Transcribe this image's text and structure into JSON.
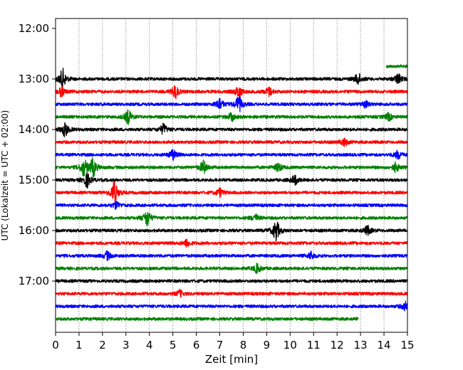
{
  "chart_data": {
    "type": "line",
    "title": "",
    "xlabel": "Zeit  [min]",
    "ylabel": "UTC (Lokalzeit = UTC + 02:00)",
    "xlim": [
      0,
      15
    ],
    "x_ticks": [
      0,
      1,
      2,
      3,
      4,
      5,
      6,
      7,
      8,
      9,
      10,
      11,
      12,
      13,
      14,
      15
    ],
    "y_tick_labels": [
      "12:00",
      "13:00",
      "14:00",
      "15:00",
      "16:00",
      "17:00"
    ],
    "grid": "vertical dotted",
    "colors": [
      "#000000",
      "#ff0000",
      "#0000ff",
      "#008000"
    ],
    "traces": [
      {
        "start": "12:45",
        "color": "#008000",
        "t_start": 14.1,
        "t_end": 15,
        "events": []
      },
      {
        "start": "13:00",
        "color": "#000000",
        "t_start": 0,
        "t_end": 15,
        "events": [
          [
            0.3,
            3.4
          ],
          [
            12.9,
            1.9
          ],
          [
            14.6,
            1.7
          ]
        ]
      },
      {
        "start": "13:15",
        "color": "#ff0000",
        "t_start": 0,
        "t_end": 15,
        "events": [
          [
            0.25,
            1.6
          ],
          [
            5.1,
            2.2
          ],
          [
            7.8,
            2.0
          ],
          [
            9.1,
            1.5
          ]
        ]
      },
      {
        "start": "13:30",
        "color": "#0000ff",
        "t_start": 0,
        "t_end": 15,
        "events": [
          [
            7.0,
            2.0
          ],
          [
            7.8,
            2.8
          ],
          [
            13.2,
            1.2
          ]
        ]
      },
      {
        "start": "13:45",
        "color": "#008000",
        "t_start": 0,
        "t_end": 15,
        "events": [
          [
            3.1,
            2.4
          ],
          [
            7.5,
            1.3
          ],
          [
            14.2,
            1.2
          ]
        ]
      },
      {
        "start": "14:00",
        "color": "#000000",
        "t_start": 0,
        "t_end": 15,
        "events": [
          [
            0.4,
            2.3
          ],
          [
            4.6,
            1.8
          ]
        ]
      },
      {
        "start": "14:15",
        "color": "#ff0000",
        "t_start": 0,
        "t_end": 15,
        "events": [
          [
            12.3,
            1.3
          ]
        ]
      },
      {
        "start": "14:30",
        "color": "#0000ff",
        "t_start": 0,
        "t_end": 15,
        "events": [
          [
            5.0,
            1.7
          ],
          [
            14.6,
            1.4
          ]
        ]
      },
      {
        "start": "14:45",
        "color": "#008000",
        "t_start": 0,
        "t_end": 15,
        "events": [
          [
            1.2,
            2.9
          ],
          [
            1.6,
            3.0
          ],
          [
            6.3,
            2.2
          ],
          [
            9.5,
            1.5
          ],
          [
            14.5,
            1.5
          ]
        ]
      },
      {
        "start": "15:00",
        "color": "#000000",
        "t_start": 0,
        "t_end": 15,
        "events": [
          [
            1.35,
            2.4
          ],
          [
            10.2,
            1.6
          ]
        ]
      },
      {
        "start": "15:15",
        "color": "#ff0000",
        "t_start": 0,
        "t_end": 15,
        "events": [
          [
            2.5,
            4.2
          ],
          [
            7.0,
            1.4
          ]
        ]
      },
      {
        "start": "15:30",
        "color": "#0000ff",
        "t_start": 0,
        "t_end": 15,
        "events": [
          [
            2.6,
            1.2
          ]
        ]
      },
      {
        "start": "15:45",
        "color": "#008000",
        "t_start": 0,
        "t_end": 15,
        "events": [
          [
            3.9,
            2.9
          ],
          [
            8.5,
            1.2
          ]
        ]
      },
      {
        "start": "16:00",
        "color": "#000000",
        "t_start": 0,
        "t_end": 15,
        "events": [
          [
            9.4,
            3.6
          ],
          [
            13.3,
            1.5
          ]
        ]
      },
      {
        "start": "16:15",
        "color": "#ff0000",
        "t_start": 0,
        "t_end": 15,
        "events": [
          [
            5.6,
            1.2
          ]
        ]
      },
      {
        "start": "16:30",
        "color": "#0000ff",
        "t_start": 0,
        "t_end": 15,
        "events": [
          [
            2.2,
            1.4
          ],
          [
            10.9,
            1.3
          ]
        ]
      },
      {
        "start": "16:45",
        "color": "#008000",
        "t_start": 0,
        "t_end": 15,
        "events": [
          [
            8.6,
            1.5
          ]
        ]
      },
      {
        "start": "17:00",
        "color": "#000000",
        "t_start": 0,
        "t_end": 15,
        "events": []
      },
      {
        "start": "17:15",
        "color": "#ff0000",
        "t_start": 0,
        "t_end": 15,
        "events": [
          [
            5.3,
            1.1
          ]
        ]
      },
      {
        "start": "17:30",
        "color": "#0000ff",
        "t_start": 0,
        "t_end": 15,
        "events": [
          [
            14.9,
            1.4
          ]
        ]
      },
      {
        "start": "17:45",
        "color": "#008000",
        "t_start": 0,
        "t_end": 12.9,
        "events": []
      }
    ]
  }
}
